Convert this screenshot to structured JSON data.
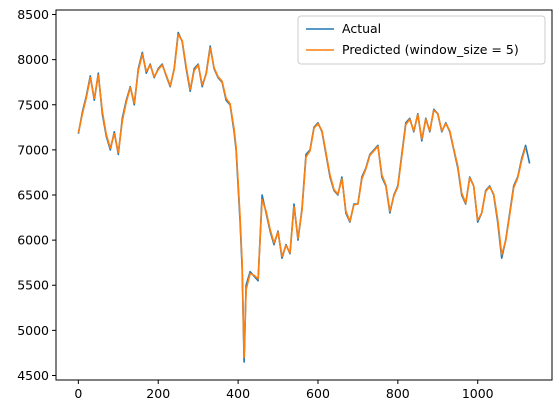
{
  "chart_data": {
    "type": "line",
    "title": "",
    "xlabel": "",
    "ylabel": "",
    "xlim": [
      -56,
      1186
    ],
    "ylim": [
      4450,
      8550
    ],
    "xticks": [
      0,
      200,
      400,
      600,
      800,
      1000
    ],
    "yticks": [
      4500,
      5000,
      5500,
      6000,
      6500,
      7000,
      7500,
      8000,
      8500
    ],
    "grid": false,
    "legend_position": "upper-right",
    "colors": {
      "actual": "#1f77b4",
      "predicted": "#ff7f0e"
    },
    "series": [
      {
        "name": "Actual",
        "x": [
          0,
          10,
          20,
          30,
          40,
          50,
          60,
          70,
          80,
          90,
          100,
          110,
          120,
          130,
          140,
          150,
          160,
          170,
          180,
          190,
          200,
          210,
          220,
          230,
          240,
          250,
          260,
          270,
          280,
          290,
          300,
          310,
          320,
          330,
          340,
          350,
          360,
          370,
          380,
          390,
          395,
          400,
          405,
          410,
          415,
          420,
          430,
          440,
          450,
          460,
          470,
          480,
          490,
          500,
          510,
          520,
          530,
          540,
          550,
          560,
          570,
          580,
          590,
          600,
          610,
          620,
          630,
          640,
          650,
          660,
          670,
          680,
          690,
          700,
          710,
          720,
          730,
          740,
          750,
          760,
          770,
          780,
          790,
          800,
          810,
          820,
          830,
          840,
          850,
          860,
          870,
          880,
          890,
          900,
          910,
          920,
          930,
          940,
          950,
          960,
          970,
          980,
          990,
          1000,
          1010,
          1020,
          1030,
          1040,
          1050,
          1060,
          1070,
          1080,
          1090,
          1100,
          1110,
          1120,
          1130
        ],
        "y": [
          7180,
          7420,
          7600,
          7820,
          7550,
          7850,
          7400,
          7150,
          7000,
          7200,
          6950,
          7350,
          7550,
          7700,
          7500,
          7900,
          8080,
          7850,
          7950,
          7800,
          7900,
          7950,
          7820,
          7700,
          7900,
          8300,
          8200,
          7900,
          7650,
          7900,
          7950,
          7700,
          7850,
          8150,
          7900,
          7800,
          7750,
          7550,
          7500,
          7200,
          7000,
          6600,
          6200,
          5700,
          4650,
          5500,
          5650,
          5600,
          5550,
          6500,
          6300,
          6100,
          5950,
          6100,
          5800,
          5950,
          5850,
          6400,
          6000,
          6350,
          6950,
          7000,
          7250,
          7300,
          7200,
          6950,
          6700,
          6550,
          6500,
          6700,
          6300,
          6200,
          6400,
          6400,
          6700,
          6800,
          6950,
          7000,
          7050,
          6700,
          6600,
          6300,
          6500,
          6600,
          6950,
          7300,
          7350,
          7200,
          7400,
          7100,
          7350,
          7200,
          7450,
          7400,
          7200,
          7300,
          7200,
          7000,
          6800,
          6500,
          6400,
          6700,
          6600,
          6200,
          6300,
          6550,
          6600,
          6500,
          6200,
          5800,
          6000,
          6300,
          6600,
          6700,
          6900,
          7050,
          6850
        ]
      },
      {
        "name": "Predicted (window_size = 5)",
        "x": [
          0,
          10,
          20,
          30,
          40,
          50,
          60,
          70,
          80,
          90,
          100,
          110,
          120,
          130,
          140,
          150,
          160,
          170,
          180,
          190,
          200,
          210,
          220,
          230,
          240,
          250,
          260,
          270,
          280,
          290,
          300,
          310,
          320,
          330,
          340,
          350,
          360,
          370,
          380,
          390,
          395,
          400,
          405,
          410,
          415,
          420,
          430,
          440,
          450,
          460,
          470,
          480,
          490,
          500,
          510,
          520,
          530,
          540,
          550,
          560,
          570,
          580,
          590,
          600,
          610,
          620,
          630,
          640,
          650,
          660,
          670,
          680,
          690,
          700,
          710,
          720,
          730,
          740,
          750,
          760,
          770,
          780,
          790,
          800,
          810,
          820,
          830,
          840,
          850,
          860,
          870,
          880,
          890,
          900,
          910,
          920,
          930,
          940,
          950,
          960,
          970,
          980,
          990,
          1000,
          1010,
          1020,
          1030,
          1040,
          1050,
          1060,
          1070,
          1080,
          1090,
          1100,
          1110,
          1120
        ],
        "y": [
          7190,
          7400,
          7580,
          7800,
          7570,
          7830,
          7430,
          7170,
          7020,
          7180,
          6970,
          7320,
          7530,
          7690,
          7520,
          7880,
          8060,
          7870,
          7940,
          7810,
          7890,
          7940,
          7830,
          7710,
          7890,
          8280,
          8210,
          7920,
          7670,
          7880,
          7940,
          7720,
          7840,
          8130,
          7910,
          7810,
          7760,
          7570,
          7510,
          7230,
          7030,
          6650,
          6250,
          5760,
          4700,
          5450,
          5630,
          5610,
          5570,
          6450,
          6320,
          6120,
          5970,
          6090,
          5820,
          5940,
          5860,
          6370,
          6020,
          6330,
          6920,
          6990,
          7240,
          7290,
          7210,
          6970,
          6720,
          6560,
          6510,
          6680,
          6320,
          6210,
          6390,
          6400,
          6680,
          6790,
          6940,
          6990,
          7040,
          6720,
          6610,
          6320,
          6490,
          6590,
          6930,
          7280,
          7340,
          7210,
          7390,
          7120,
          7340,
          7210,
          7440,
          7400,
          7210,
          7290,
          7210,
          7010,
          6820,
          6520,
          6410,
          6690,
          6600,
          6220,
          6300,
          6540,
          6590,
          6510,
          6230,
          5840,
          5990,
          6280,
          6580,
          6690,
          6880,
          7030
        ]
      }
    ]
  }
}
